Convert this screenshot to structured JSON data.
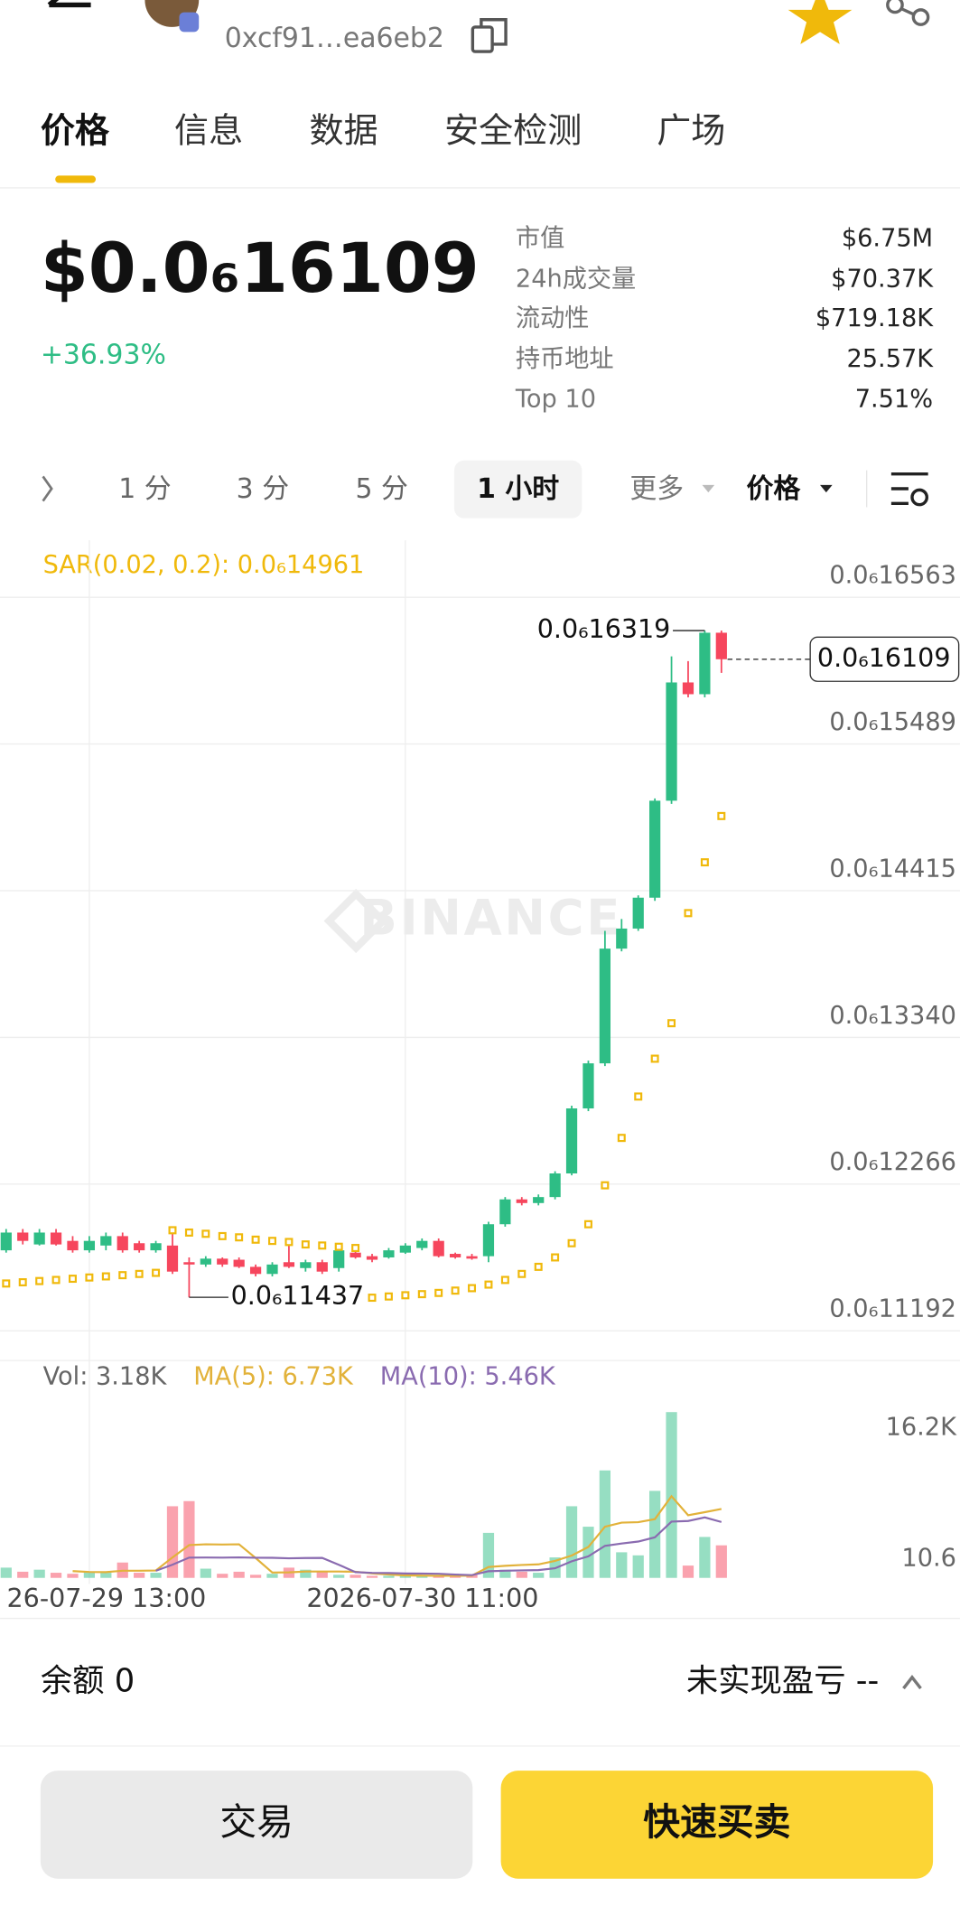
{
  "header": {
    "address": "0xcf91…ea6eb2"
  },
  "tabs": [
    "价格",
    "信息",
    "数据",
    "安全检测",
    "广场"
  ],
  "price": {
    "text": "$0.0₆16109",
    "change": "+36.93%"
  },
  "stats": [
    {
      "label": "市值",
      "value": "$6.75M"
    },
    {
      "label": "24h成交量",
      "value": "$70.37K"
    },
    {
      "label": "流动性",
      "value": "$719.18K"
    },
    {
      "label": "持币地址",
      "value": "25.57K"
    },
    {
      "label": "Top 10",
      "value": "7.51%"
    }
  ],
  "intervals": [
    "1 分",
    "3 分",
    "5 分",
    "1 小时",
    "更多",
    "价格"
  ],
  "watermark": "BINANCE",
  "chart_data": [
    {
      "type": "candlestick",
      "up_color": "#2ebd85",
      "down_color": "#f6465d",
      "grid": true,
      "categories": [
        null,
        null,
        null,
        null,
        null,
        "26-07-29 13:00",
        null,
        null,
        null,
        null,
        null,
        null,
        null,
        null,
        null,
        null,
        null,
        null,
        null,
        null,
        null,
        null,
        null,
        null,
        "2026-07-30 11:00",
        null,
        null,
        null,
        null,
        null,
        null,
        null,
        null,
        null,
        null,
        null,
        null,
        null,
        null,
        null,
        null,
        null,
        null,
        null
      ],
      "open": [
        1.1781e-07,
        1.1911e-07,
        1.1824e-07,
        1.1911e-07,
        1.185e-07,
        1.1781e-07,
        1.1816e-07,
        1.1885e-07,
        1.1833e-07,
        1.1781e-07,
        1.1816e-07,
        1.1694e-07,
        1.1677e-07,
        1.172e-07,
        1.1712e-07,
        1.166e-07,
        1.1608e-07,
        1.1694e-07,
        1.1651e-07,
        1.1694e-07,
        1.1651e-07,
        1.1764e-07,
        1.1738e-07,
        1.1729e-07,
        1.1764e-07,
        1.1798e-07,
        1.185e-07,
        1.1755e-07,
        1.1738e-07,
        1.1738e-07,
        1.1972e-07,
        1.2154e-07,
        1.2127e-07,
        1.2171e-07,
        1.2344e-07,
        1.282e-07,
        1.315e-07,
        1.399e-07,
        1.4137e-07,
        1.4363e-07,
        1.5073e-07,
        1.5939e-07,
        1.5853e-07,
        1.6303e-07
      ],
      "high": [
        1.1937e-07,
        1.1937e-07,
        1.1937e-07,
        1.1937e-07,
        1.1885e-07,
        1.1885e-07,
        1.1911e-07,
        1.1911e-07,
        1.185e-07,
        1.185e-07,
        1.1937e-07,
        1.1729e-07,
        1.1738e-07,
        1.1729e-07,
        1.1729e-07,
        1.1677e-07,
        1.1694e-07,
        1.1824e-07,
        1.1712e-07,
        1.1712e-07,
        1.1798e-07,
        1.1781e-07,
        1.1755e-07,
        1.1798e-07,
        1.1833e-07,
        1.1868e-07,
        1.1868e-07,
        1.1764e-07,
        1.1755e-07,
        1.199e-07,
        1.2171e-07,
        1.2171e-07,
        1.219e-07,
        1.236e-07,
        1.284e-07,
        1.317e-07,
        1.412e-07,
        1.4207e-07,
        1.438e-07,
        1.509e-07,
        1.613e-07,
        1.6095e-07,
        1.6319e-07,
        1.6319e-07
      ],
      "low": [
        1.1764e-07,
        1.1824e-07,
        1.1816e-07,
        1.1816e-07,
        1.1764e-07,
        1.1764e-07,
        1.1781e-07,
        1.1764e-07,
        1.1764e-07,
        1.1764e-07,
        1.1608e-07,
        1.1437e-07,
        1.166e-07,
        1.166e-07,
        1.1651e-07,
        1.159e-07,
        1.159e-07,
        1.1651e-07,
        1.1625e-07,
        1.1608e-07,
        1.1625e-07,
        1.172e-07,
        1.1694e-07,
        1.172e-07,
        1.1755e-07,
        1.1781e-07,
        1.1729e-07,
        1.172e-07,
        1.1712e-07,
        1.1694e-07,
        1.1954e-07,
        1.211e-07,
        1.211e-07,
        1.2154e-07,
        1.233e-07,
        1.28e-07,
        1.313e-07,
        1.397e-07,
        1.412e-07,
        1.434e-07,
        1.505e-07,
        1.583e-07,
        1.583e-07,
        1.6009e-07
      ],
      "close": [
        1.1911e-07,
        1.185e-07,
        1.1911e-07,
        1.1824e-07,
        1.1781e-07,
        1.185e-07,
        1.1885e-07,
        1.1781e-07,
        1.1781e-07,
        1.1833e-07,
        1.1625e-07,
        1.1677e-07,
        1.172e-07,
        1.1677e-07,
        1.166e-07,
        1.1608e-07,
        1.1677e-07,
        1.166e-07,
        1.1694e-07,
        1.1625e-07,
        1.1781e-07,
        1.1729e-07,
        1.1712e-07,
        1.1781e-07,
        1.1816e-07,
        1.185e-07,
        1.1738e-07,
        1.1729e-07,
        1.172e-07,
        1.1972e-07,
        1.2154e-07,
        1.2127e-07,
        1.2171e-07,
        1.2344e-07,
        1.282e-07,
        1.315e-07,
        1.399e-07,
        1.4137e-07,
        1.4363e-07,
        1.5073e-07,
        1.5939e-07,
        1.5853e-07,
        1.6303e-07,
        1.6109e-07
      ],
      "sar": {
        "name": "SAR(0.02, 0.2): 0.0₆14961",
        "color": "#f0b90b",
        "values": [
          1.1538e-07,
          1.1547e-07,
          1.1556e-07,
          1.1564e-07,
          1.1573e-07,
          1.1582e-07,
          1.159e-07,
          1.1599e-07,
          1.1608e-07,
          1.1616e-07,
          1.1928e-07,
          1.1911e-07,
          1.1902e-07,
          1.1885e-07,
          1.1876e-07,
          1.1859e-07,
          1.185e-07,
          1.1842e-07,
          1.1824e-07,
          1.1816e-07,
          1.1807e-07,
          1.1798e-07,
          1.1434e-07,
          1.1443e-07,
          1.1452e-07,
          1.146e-07,
          1.1469e-07,
          1.1486e-07,
          1.1504e-07,
          1.153e-07,
          1.1564e-07,
          1.1608e-07,
          1.166e-07,
          1.1729e-07,
          1.1833e-07,
          1.1972e-07,
          1.2257e-07,
          1.2604e-07,
          1.2907e-07,
          1.3184e-07,
          1.3444e-07,
          1.425e-07,
          1.4622e-07,
          1.4961e-07
        ]
      },
      "annotations": [
        {
          "value": 1.6319e-07,
          "label": "0.0₆16319"
        },
        {
          "value": 1.1437e-07,
          "label": "0.0₆11437"
        }
      ],
      "last_price": {
        "value": 1.6109e-07,
        "label": "0.0₆16109"
      },
      "ylim": [
        1.0974e-07,
        1.6935e-07
      ],
      "yticks": [
        {
          "value": 1.1192e-07,
          "label": "0.0₆11192"
        },
        {
          "value": 1.2266e-07,
          "label": "0.0₆12266"
        },
        {
          "value": 1.334e-07,
          "label": "0.0₆13340"
        },
        {
          "value": 1.4415e-07,
          "label": "0.0₆14415"
        },
        {
          "value": 1.5489e-07,
          "label": "0.0₆15489"
        },
        {
          "value": 1.6563e-07,
          "label": "0.0₆16563"
        }
      ]
    },
    {
      "type": "bar",
      "series": [
        {
          "name": "Vol: 3.18K",
          "color": "#666666",
          "values": [
            1000,
            600,
            800,
            500,
            400,
            600,
            500,
            1500,
            500,
            500,
            7000,
            7500,
            900,
            400,
            600,
            300,
            400,
            1000,
            800,
            600,
            300,
            300,
            200,
            200,
            200,
            200,
            200,
            200,
            300,
            4400,
            800,
            600,
            500,
            2000,
            7000,
            5000,
            10500,
            2500,
            2200,
            8500,
            16200,
            1200,
            4000,
            3180
          ]
        },
        {
          "name": "MA(5): 6.73K",
          "color": "#e2b23a",
          "values": [
            null,
            null,
            null,
            null,
            660,
            580,
            560,
            700,
            700,
            720,
            2000,
            3200,
            3280,
            3260,
            3280,
            1940,
            520,
            540,
            620,
            620,
            620,
            600,
            440,
            320,
            240,
            220,
            200,
            200,
            220,
            1060,
            1180,
            1260,
            1320,
            1660,
            2180,
            3020,
            5000,
            5400,
            5440,
            5740,
            7980,
            6120,
            6420,
            6730
          ]
        },
        {
          "name": "MA(10): 5.46K",
          "color": "#8a6bb0",
          "values": [
            null,
            null,
            null,
            null,
            null,
            null,
            null,
            null,
            null,
            690,
            1290,
            1980,
            1990,
            1980,
            2000,
            1970,
            1960,
            1910,
            1940,
            1950,
            1280,
            560,
            490,
            470,
            430,
            420,
            400,
            320,
            270,
            650,
            700,
            730,
            760,
            940,
            1620,
            2100,
            3130,
            3360,
            3550,
            3960,
            5500,
            5560,
            5910,
            5460
          ]
        }
      ],
      "ylim": [
        0,
        17400
      ],
      "yticks": [
        {
          "value": 16200,
          "label": "16.2K"
        },
        10.6
      ]
    }
  ],
  "footer": {
    "balance": "余额 0",
    "pnl": "未实现盈亏 --",
    "buttons": [
      "交易",
      "快速买卖"
    ]
  }
}
